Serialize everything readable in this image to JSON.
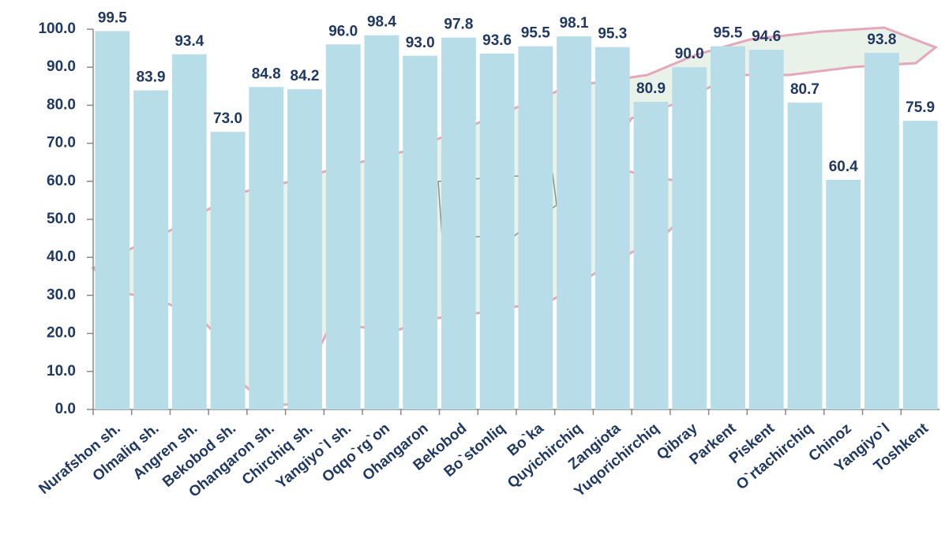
{
  "chart_data": {
    "type": "bar",
    "categories": [
      "Nurafshon sh.",
      "Olmaliq sh.",
      "Angren sh.",
      "Bekobod sh.",
      "Ohangaron sh.",
      "Chirchiq sh.",
      "Yangiyo`l sh.",
      "Oqqo`rg`on",
      "Ohangaron",
      "Bekobod",
      "Bo`stonliq",
      "Bo`ka",
      "Quyichirchiq",
      "Zangiota",
      "Yuqorichirchiq",
      "Qibray",
      "Parkent",
      "Piskent",
      "O`rtachirchiq",
      "Chinoz",
      "Yangiyo`l",
      "Toshkent"
    ],
    "values": [
      99.5,
      83.9,
      93.4,
      73.0,
      84.8,
      84.2,
      96.0,
      98.4,
      93.0,
      97.8,
      93.6,
      95.5,
      98.1,
      95.3,
      80.9,
      90.0,
      95.5,
      94.6,
      80.7,
      60.4,
      93.8,
      75.9
    ],
    "value_labels": [
      "99.5",
      "83.9",
      "93.4",
      "73.0",
      "84.8",
      "84.2",
      "96.0",
      "98.4",
      "93.0",
      "97.8",
      "93.6",
      "95.5",
      "98.1",
      "95.3",
      "80.9",
      "90.0",
      "95.5",
      "94.6",
      "80.7",
      "60.4",
      "93.8",
      "75.9"
    ],
    "color": "#b7dde8",
    "ylim": [
      0,
      100
    ],
    "yticks": [
      {
        "value": 0,
        "label": "0.0"
      },
      {
        "value": 10,
        "label": "10.0"
      },
      {
        "value": 20,
        "label": "20.0"
      },
      {
        "value": 30,
        "label": "30.0"
      },
      {
        "value": 40,
        "label": "40.0"
      },
      {
        "value": 50,
        "label": "50.0"
      },
      {
        "value": 60,
        "label": "60.0"
      },
      {
        "value": 70,
        "label": "70.0"
      },
      {
        "value": 80,
        "label": "80.0"
      },
      {
        "value": 90,
        "label": "90.0"
      },
      {
        "value": 100,
        "label": "100.0"
      }
    ],
    "grid": false
  }
}
